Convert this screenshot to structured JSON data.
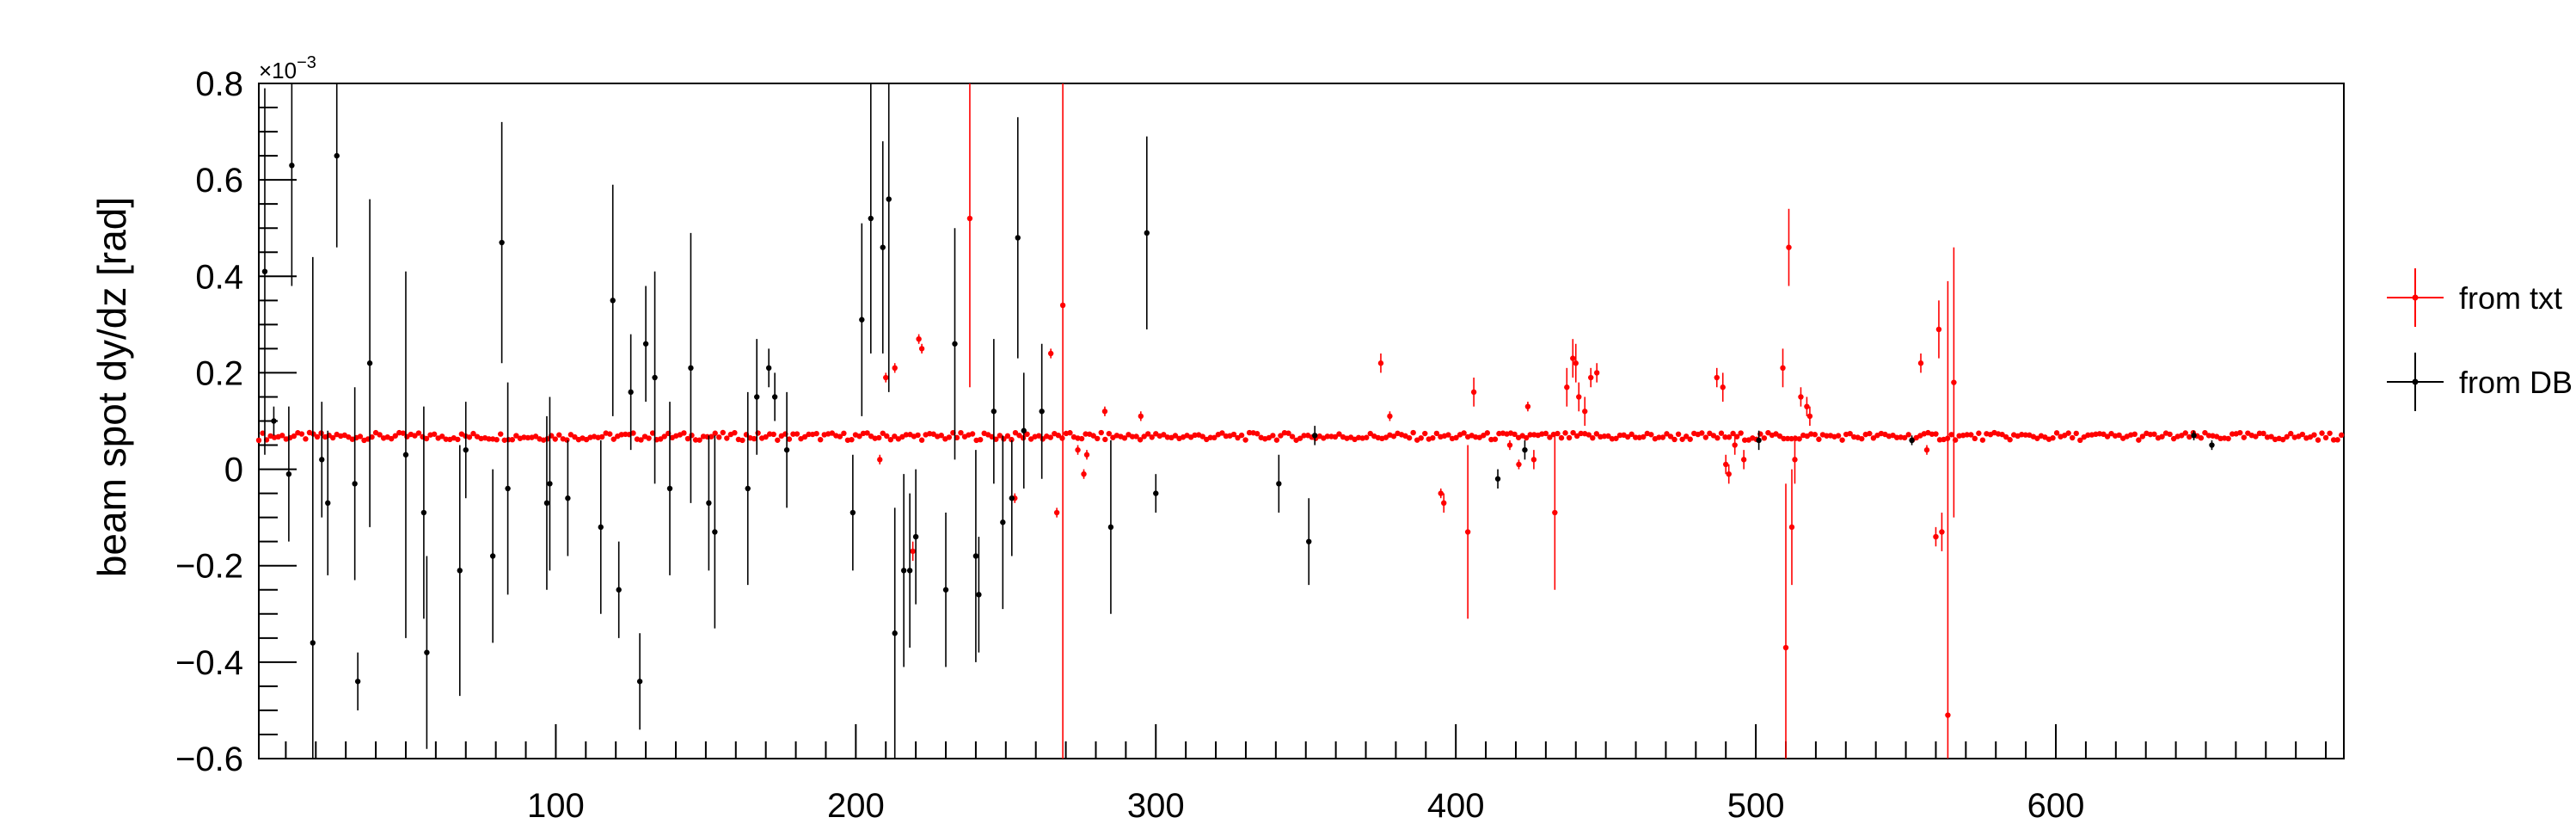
{
  "chart_data": {
    "type": "scatter",
    "title": "",
    "xlabel": "",
    "ylabel": "beam spot dy/dz [rad]",
    "y_multiplier": "×10",
    "y_multiplier_exp": "−3",
    "xlim": [
      1,
      696
    ],
    "ylim": [
      -0.6,
      0.8
    ],
    "x_ticks": [
      100,
      200,
      300,
      400,
      500,
      600
    ],
    "y_ticks": [
      -0.6,
      -0.4,
      -0.2,
      0,
      0.2,
      0.4,
      0.6,
      0.8
    ],
    "y_tick_labels": [
      "−0.6",
      "−0.4",
      "−0.2",
      "0",
      "0.2",
      "0.4",
      "0.6",
      "0.8"
    ],
    "grid": false,
    "legend_position": "right",
    "colors": {
      "txt": "#ff0000",
      "db": "#000000"
    },
    "series": [
      {
        "name": "from txt",
        "baseline": {
          "x_start": 1,
          "x_end": 696,
          "step": 1.3,
          "y": 0.068,
          "jitter": 0.008
        },
        "points": [
          [
            208,
            0.02,
            0.01
          ],
          [
            210,
            0.19,
            0.01
          ],
          [
            213,
            0.21,
            0.01
          ],
          [
            219,
            -0.17,
            0.02
          ],
          [
            221,
            0.27,
            0.01
          ],
          [
            222,
            0.25,
            0.01
          ],
          [
            238,
            0.52,
            0.35
          ],
          [
            253,
            -0.06,
            0.01
          ],
          [
            265,
            0.24,
            0.01
          ],
          [
            267,
            -0.09,
            0.01
          ],
          [
            269,
            0.34,
            1.0
          ],
          [
            274,
            0.04,
            0.01
          ],
          [
            276,
            -0.01,
            0.01
          ],
          [
            277,
            0.03,
            0.01
          ],
          [
            283,
            0.12,
            0.01
          ],
          [
            295,
            0.11,
            0.01
          ],
          [
            375,
            0.22,
            0.02
          ],
          [
            378,
            0.11,
            0.01
          ],
          [
            395,
            -0.05,
            0.01
          ],
          [
            396,
            -0.07,
            0.02
          ],
          [
            404,
            -0.13,
            0.18
          ],
          [
            406,
            0.16,
            0.03
          ],
          [
            418,
            0.05,
            0.01
          ],
          [
            421,
            0.01,
            0.01
          ],
          [
            424,
            0.13,
            0.01
          ],
          [
            426,
            0.02,
            0.02
          ],
          [
            433,
            -0.09,
            0.16
          ],
          [
            437,
            0.17,
            0.04
          ],
          [
            439,
            0.23,
            0.04
          ],
          [
            440,
            0.22,
            0.04
          ],
          [
            441,
            0.15,
            0.03
          ],
          [
            443,
            0.12,
            0.03
          ],
          [
            445,
            0.19,
            0.02
          ],
          [
            447,
            0.2,
            0.02
          ],
          [
            487,
            0.19,
            0.02
          ],
          [
            489,
            0.17,
            0.03
          ],
          [
            490,
            0.01,
            0.02
          ],
          [
            491,
            -0.01,
            0.02
          ],
          [
            493,
            0.05,
            0.02
          ],
          [
            496,
            0.02,
            0.02
          ],
          [
            509,
            0.21,
            0.04
          ],
          [
            510,
            -0.37,
            0.34
          ],
          [
            511,
            0.46,
            0.08
          ],
          [
            512,
            -0.12,
            0.12
          ],
          [
            513,
            0.02,
            0.05
          ],
          [
            515,
            0.15,
            0.02
          ],
          [
            517,
            0.13,
            0.02
          ],
          [
            518,
            0.11,
            0.02
          ],
          [
            555,
            0.22,
            0.02
          ],
          [
            557,
            0.04,
            0.01
          ],
          [
            560,
            -0.14,
            0.02
          ],
          [
            561,
            0.29,
            0.06
          ],
          [
            562,
            -0.13,
            0.04
          ],
          [
            564,
            -0.51,
            0.9
          ],
          [
            566,
            0.18,
            0.28
          ]
        ]
      },
      {
        "name": "from DB",
        "points": [
          [
            3,
            0.41,
            0.38
          ],
          [
            6,
            0.1,
            0.03
          ],
          [
            11,
            -0.01,
            0.14
          ],
          [
            12,
            0.63,
            0.25
          ],
          [
            19,
            -0.36,
            0.8
          ],
          [
            22,
            0.02,
            0.12
          ],
          [
            24,
            -0.07,
            0.15
          ],
          [
            27,
            0.65,
            0.19
          ],
          [
            33,
            -0.03,
            0.2
          ],
          [
            34,
            -0.44,
            0.06
          ],
          [
            38,
            0.22,
            0.34
          ],
          [
            50,
            0.03,
            0.38
          ],
          [
            56,
            -0.09,
            0.22
          ],
          [
            57,
            -0.38,
            0.2
          ],
          [
            68,
            -0.21,
            0.26
          ],
          [
            70,
            0.04,
            0.1
          ],
          [
            79,
            -0.18,
            0.18
          ],
          [
            82,
            0.47,
            0.25
          ],
          [
            84,
            -0.04,
            0.22
          ],
          [
            97,
            -0.07,
            0.18
          ],
          [
            98,
            -0.03,
            0.18
          ],
          [
            104,
            -0.06,
            0.12
          ],
          [
            115,
            -0.12,
            0.18
          ],
          [
            119,
            0.35,
            0.24
          ],
          [
            121,
            -0.25,
            0.1
          ],
          [
            125,
            0.16,
            0.12
          ],
          [
            128,
            -0.44,
            0.1
          ],
          [
            130,
            0.26,
            0.12
          ],
          [
            133,
            0.19,
            0.22
          ],
          [
            138,
            -0.04,
            0.18
          ],
          [
            145,
            0.21,
            0.28
          ],
          [
            151,
            -0.07,
            0.14
          ],
          [
            153,
            -0.13,
            0.2
          ],
          [
            164,
            -0.04,
            0.2
          ],
          [
            167,
            0.15,
            0.12
          ],
          [
            171,
            0.21,
            0.04
          ],
          [
            173,
            0.15,
            0.05
          ],
          [
            177,
            0.04,
            0.12
          ],
          [
            199,
            -0.09,
            0.12
          ],
          [
            202,
            0.31,
            0.2
          ],
          [
            205,
            0.52,
            0.28
          ],
          [
            209,
            0.46,
            0.22
          ],
          [
            211,
            0.56,
            0.4
          ],
          [
            213,
            -0.34,
            0.26
          ],
          [
            216,
            -0.21,
            0.2
          ],
          [
            218,
            -0.21,
            0.16
          ],
          [
            220,
            -0.14,
            0.14
          ],
          [
            230,
            -0.25,
            0.16
          ],
          [
            233,
            0.26,
            0.24
          ],
          [
            240,
            -0.18,
            0.22
          ],
          [
            241,
            -0.26,
            0.12
          ],
          [
            246,
            0.12,
            0.15
          ],
          [
            249,
            -0.11,
            0.18
          ],
          [
            252,
            -0.06,
            0.12
          ],
          [
            254,
            0.48,
            0.25
          ],
          [
            256,
            0.08,
            0.12
          ],
          [
            262,
            0.12,
            0.14
          ],
          [
            285,
            -0.12,
            0.18
          ],
          [
            297,
            0.49,
            0.2
          ],
          [
            300,
            -0.05,
            0.04
          ],
          [
            341,
            -0.03,
            0.06
          ],
          [
            351,
            -0.15,
            0.09
          ],
          [
            353,
            0.07,
            0.02
          ],
          [
            414,
            -0.02,
            0.02
          ],
          [
            423,
            0.04,
            0.02
          ],
          [
            501,
            0.06,
            0.02
          ],
          [
            552,
            0.06,
            0.01
          ],
          [
            646,
            0.07,
            0.01
          ],
          [
            652,
            0.05,
            0.01
          ]
        ]
      }
    ]
  }
}
